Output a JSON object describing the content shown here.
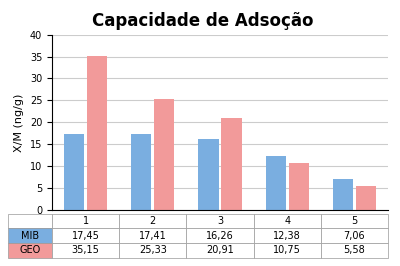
{
  "chart_data": {
    "type": "bar",
    "title": "Capacidade de Adsoção",
    "y_label": "X/M (ng/g)",
    "categories": [
      "1",
      "2",
      "3",
      "4",
      "5"
    ],
    "series": [
      {
        "name": "MIB",
        "color": "#7aaee0",
        "values": [
          17.45,
          17.41,
          16.26,
          12.38,
          7.06
        ],
        "value_labels": [
          "17,45",
          "17,41",
          "16,26",
          "12,38",
          "7,06"
        ]
      },
      {
        "name": "GEO",
        "color": "#f29a9a",
        "values": [
          35.15,
          25.33,
          20.91,
          10.75,
          5.58
        ],
        "value_labels": [
          "35,15",
          "25,33",
          "20,91",
          "10,75",
          "5,58"
        ]
      }
    ],
    "ylim": [
      0,
      40
    ],
    "yticks": [
      0,
      5,
      10,
      15,
      20,
      25,
      30,
      35,
      40
    ],
    "grid": true
  }
}
